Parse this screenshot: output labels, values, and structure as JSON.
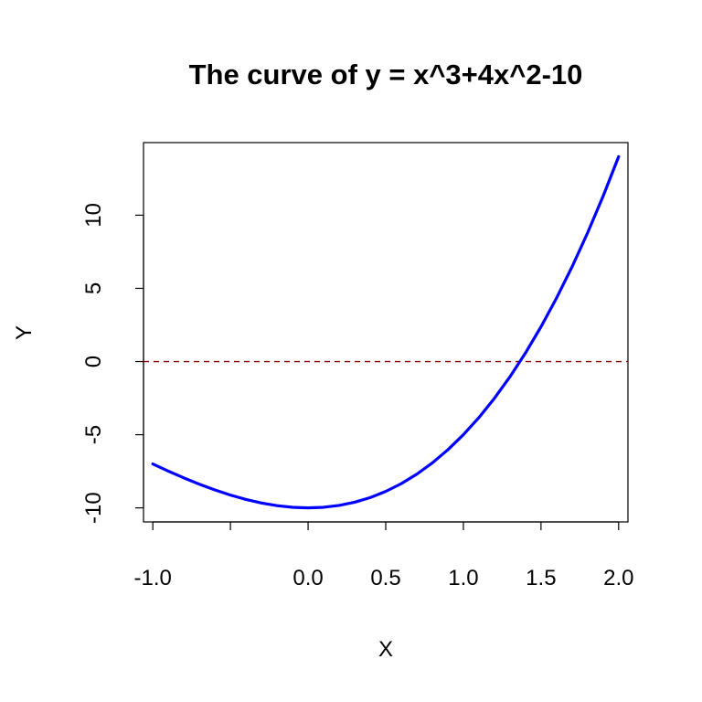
{
  "chart_data": {
    "type": "line",
    "title": "The curve of y = x^3+4x^2-10",
    "xlabel": "X",
    "ylabel": "Y",
    "xlim": [
      -1.06,
      2.06
    ],
    "ylim": [
      -10.96,
      14.96
    ],
    "x_ticks": [
      -1.0,
      -0.5,
      0.0,
      0.5,
      1.0,
      1.5,
      2.0
    ],
    "x_tick_labels": [
      "-1.0",
      "",
      "0.0",
      "0.5",
      "1.0",
      "1.5",
      "2.0"
    ],
    "y_ticks": [
      -10,
      -5,
      0,
      5,
      10
    ],
    "y_tick_labels": [
      "-10",
      "-5",
      "0",
      "5",
      "10"
    ],
    "reference_line": {
      "y": 0,
      "style": "dashed",
      "color": "#8b0000"
    },
    "series": [
      {
        "color": "#0000ff",
        "x": [
          -1.0,
          -0.9,
          -0.8,
          -0.7,
          -0.6,
          -0.5,
          -0.4,
          -0.3,
          -0.2,
          -0.1,
          0.0,
          0.1,
          0.2,
          0.3,
          0.4,
          0.5,
          0.6,
          0.7,
          0.8,
          0.9,
          1.0,
          1.1,
          1.2,
          1.3,
          1.4,
          1.5,
          1.6,
          1.7,
          1.8,
          1.9,
          2.0
        ],
        "y": [
          -7.0,
          -7.489,
          -7.952,
          -8.383,
          -8.776,
          -9.125,
          -9.424,
          -9.667,
          -9.848,
          -9.961,
          -10.0,
          -9.959,
          -9.832,
          -9.613,
          -9.296,
          -8.875,
          -8.344,
          -7.697,
          -6.928,
          -6.031,
          -5.0,
          -3.829,
          -2.512,
          -1.043,
          0.584,
          2.375,
          4.336,
          6.473,
          8.792,
          11.299,
          14.0
        ]
      }
    ],
    "grid": false,
    "legend": "none"
  }
}
